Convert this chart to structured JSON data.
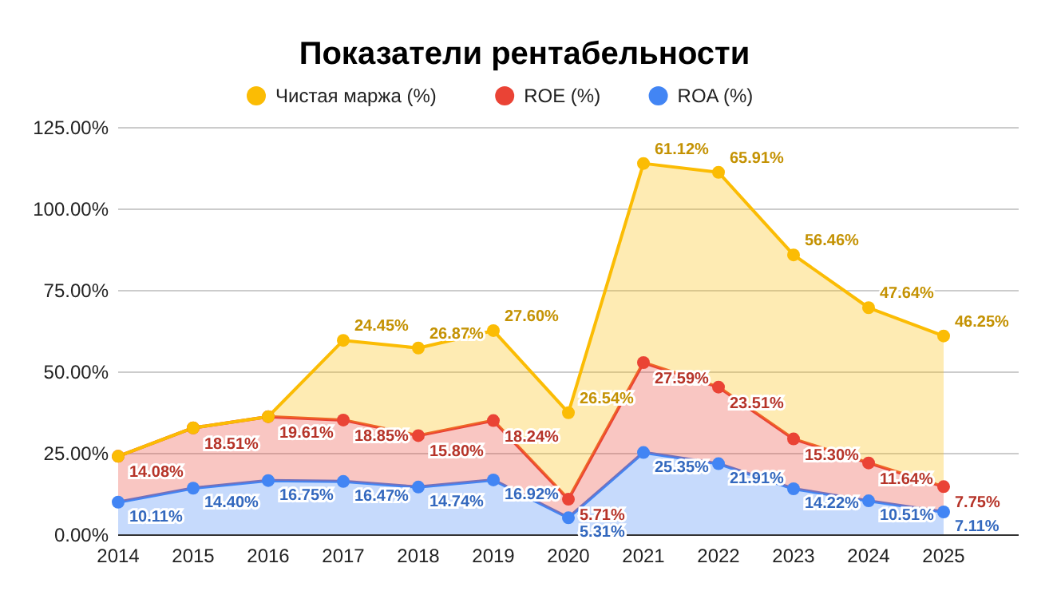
{
  "chart_data": {
    "type": "area",
    "title": "Показатели рентабельности",
    "stacked": true,
    "x": [
      2014,
      2015,
      2016,
      2017,
      2018,
      2019,
      2020,
      2021,
      2022,
      2023,
      2024,
      2025
    ],
    "series": [
      {
        "name": "ROA (%)",
        "color": "#4285f4",
        "values": [
          10.11,
          14.4,
          16.75,
          16.47,
          14.74,
          16.92,
          5.31,
          25.35,
          21.91,
          14.22,
          10.51,
          7.11
        ],
        "value_labels": [
          "10.11%",
          "14.40%",
          "16.75%",
          "16.47%",
          "14.74%",
          "16.92%",
          "5.31%",
          "25.35%",
          "21.91%",
          "14.22%",
          "10.51%",
          "7.11%"
        ]
      },
      {
        "name": "ROE (%)",
        "color": "#ea4335",
        "values": [
          14.08,
          18.51,
          19.61,
          18.85,
          15.8,
          18.24,
          5.71,
          27.59,
          23.51,
          15.3,
          11.64,
          7.75
        ],
        "value_labels": [
          "14.08%",
          "18.51%",
          "19.61%",
          "18.85%",
          "15.80%",
          "18.24%",
          "5.71%",
          "27.59%",
          "23.51%",
          "15.30%",
          "11.64%",
          "7.75%"
        ]
      },
      {
        "name": "Чистая маржа (%)",
        "color": "#fbbc04",
        "values": [
          0,
          0,
          0,
          24.45,
          26.87,
          27.6,
          26.54,
          61.12,
          65.91,
          56.46,
          47.64,
          46.25
        ],
        "value_labels": [
          null,
          null,
          null,
          "24.45%",
          "26.87%",
          "27.60%",
          "26.54%",
          "61.12%",
          "65.91%",
          "56.46%",
          "47.64%",
          "46.25%"
        ]
      }
    ],
    "xlim": [
      2014,
      2026
    ],
    "xticks": [
      2014,
      2015,
      2016,
      2017,
      2018,
      2019,
      2020,
      2021,
      2022,
      2023,
      2024,
      2025
    ],
    "ylim": [
      0,
      125
    ],
    "yticks": [
      {
        "value": 0,
        "label": "0.00%"
      },
      {
        "value": 25,
        "label": "25.00%"
      },
      {
        "value": 50,
        "label": "50.00%"
      },
      {
        "value": 75,
        "label": "75.00%"
      },
      {
        "value": 100,
        "label": "100.00%"
      },
      {
        "value": 125,
        "label": "125.00%"
      }
    ],
    "grid": "y",
    "legend": "top",
    "marker": "circle"
  }
}
